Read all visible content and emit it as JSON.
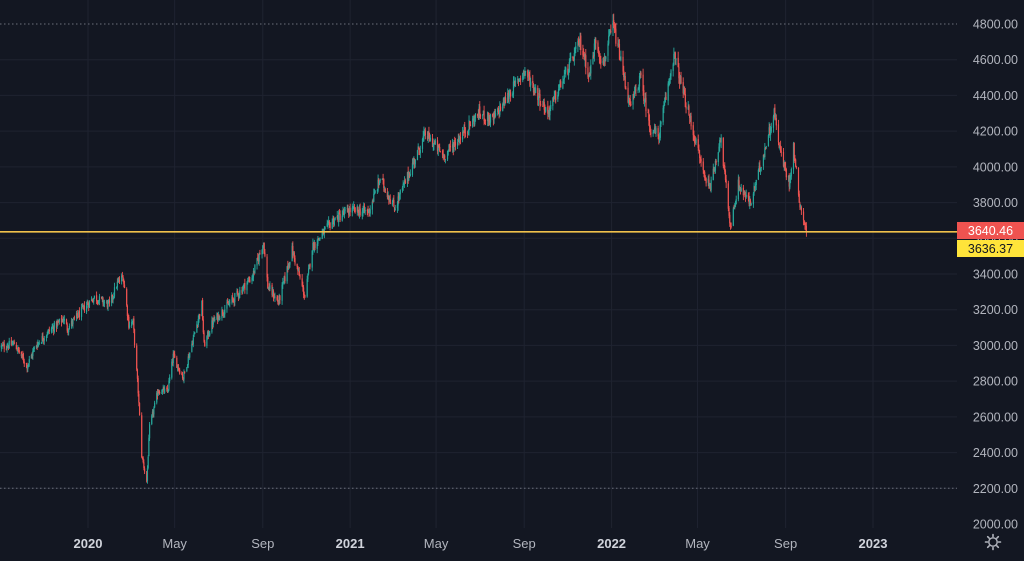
{
  "chart_data": {
    "type": "candlestick",
    "y_axis": {
      "min": 2000,
      "max": 4800,
      "ticks": [
        "4800.00",
        "4600.00",
        "4400.00",
        "4200.00",
        "4000.00",
        "3800.00",
        "3600.00",
        "3400.00",
        "3200.00",
        "3000.00",
        "2800.00",
        "2600.00",
        "2400.00",
        "2200.00",
        "2000.00"
      ],
      "position": "right"
    },
    "x_axis": {
      "ticks": [
        {
          "label": "2020",
          "date": "2020-01-01",
          "year": true
        },
        {
          "label": "May",
          "date": "2020-05-01",
          "year": false
        },
        {
          "label": "Sep",
          "date": "2020-09-01",
          "year": false
        },
        {
          "label": "2021",
          "date": "2021-01-01",
          "year": true
        },
        {
          "label": "May",
          "date": "2021-05-01",
          "year": false
        },
        {
          "label": "Sep",
          "date": "2021-09-01",
          "year": false
        },
        {
          "label": "2022",
          "date": "2022-01-01",
          "year": true
        },
        {
          "label": "May",
          "date": "2022-05-01",
          "year": false
        },
        {
          "label": "Sep",
          "date": "2022-09-01",
          "year": false
        },
        {
          "label": "2023",
          "date": "2023-01-01",
          "year": true
        }
      ]
    },
    "price_path": [
      [
        "2019-09-01",
        2990
      ],
      [
        "2019-09-20",
        3010
      ],
      [
        "2019-10-08",
        2885
      ],
      [
        "2019-10-20",
        3000
      ],
      [
        "2019-11-05",
        3070
      ],
      [
        "2019-11-28",
        3150
      ],
      [
        "2019-12-03",
        3095
      ],
      [
        "2019-12-31",
        3230
      ],
      [
        "2020-01-10",
        3270
      ],
      [
        "2020-01-31",
        3225
      ],
      [
        "2020-02-10",
        3340
      ],
      [
        "2020-02-19",
        3386
      ],
      [
        "2020-02-27",
        3120
      ],
      [
        "2020-03-04",
        3130
      ],
      [
        "2020-03-11",
        2741
      ],
      [
        "2020-03-16",
        2386
      ],
      [
        "2020-03-23",
        2237
      ],
      [
        "2020-03-27",
        2540
      ],
      [
        "2020-04-08",
        2750
      ],
      [
        "2020-04-21",
        2740
      ],
      [
        "2020-04-29",
        2940
      ],
      [
        "2020-05-13",
        2820
      ],
      [
        "2020-06-08",
        3230
      ],
      [
        "2020-06-11",
        3000
      ],
      [
        "2020-06-23",
        3130
      ],
      [
        "2020-07-20",
        3250
      ],
      [
        "2020-08-18",
        3390
      ],
      [
        "2020-09-02",
        3580
      ],
      [
        "2020-09-08",
        3330
      ],
      [
        "2020-09-23",
        3240
      ],
      [
        "2020-10-12",
        3535
      ],
      [
        "2020-10-30",
        3270
      ],
      [
        "2020-11-09",
        3550
      ],
      [
        "2020-12-08",
        3700
      ],
      [
        "2020-12-31",
        3756
      ],
      [
        "2021-01-27",
        3750
      ],
      [
        "2021-02-12",
        3935
      ],
      [
        "2021-03-04",
        3770
      ],
      [
        "2021-04-16",
        4185
      ],
      [
        "2021-05-12",
        4060
      ],
      [
        "2021-06-30",
        4300
      ],
      [
        "2021-07-19",
        4260
      ],
      [
        "2021-08-27",
        4510
      ],
      [
        "2021-09-02",
        4537
      ],
      [
        "2021-10-04",
        4300
      ],
      [
        "2021-11-18",
        4700
      ],
      [
        "2021-12-01",
        4510
      ],
      [
        "2021-12-10",
        4712
      ],
      [
        "2021-12-20",
        4570
      ],
      [
        "2022-01-03",
        4797
      ],
      [
        "2022-01-10",
        4670
      ],
      [
        "2022-01-27",
        4330
      ],
      [
        "2022-02-10",
        4500
      ],
      [
        "2022-02-24",
        4220
      ],
      [
        "2022-03-08",
        4170
      ],
      [
        "2022-03-29",
        4630
      ],
      [
        "2022-04-12",
        4400
      ],
      [
        "2022-04-29",
        4130
      ],
      [
        "2022-05-12",
        3930
      ],
      [
        "2022-05-20",
        3900
      ],
      [
        "2022-06-02",
        4170
      ],
      [
        "2022-06-16",
        3666
      ],
      [
        "2022-06-27",
        3900
      ],
      [
        "2022-07-14",
        3790
      ],
      [
        "2022-08-16",
        4305
      ],
      [
        "2022-08-26",
        4060
      ],
      [
        "2022-09-06",
        3910
      ],
      [
        "2022-09-12",
        4110
      ],
      [
        "2022-09-21",
        3790
      ],
      [
        "2022-09-30",
        3640
      ]
    ],
    "crosshair_value": 3640.46,
    "horizontal_line_value": 3636.37,
    "last_price_label": "3640.46",
    "line_price_label": "3636.37",
    "high_marker": 4800,
    "low_marker": 2200,
    "colors": {
      "up": "#26a69a",
      "down": "#ef5350",
      "background": "#131722",
      "grid": "#1f2330",
      "horizontal_line": "#f0c14b",
      "last_price_bg": "#ef5350",
      "line_price_bg": "#ffe43a"
    },
    "grid": true,
    "settings_icon": "settings-gear-icon"
  }
}
